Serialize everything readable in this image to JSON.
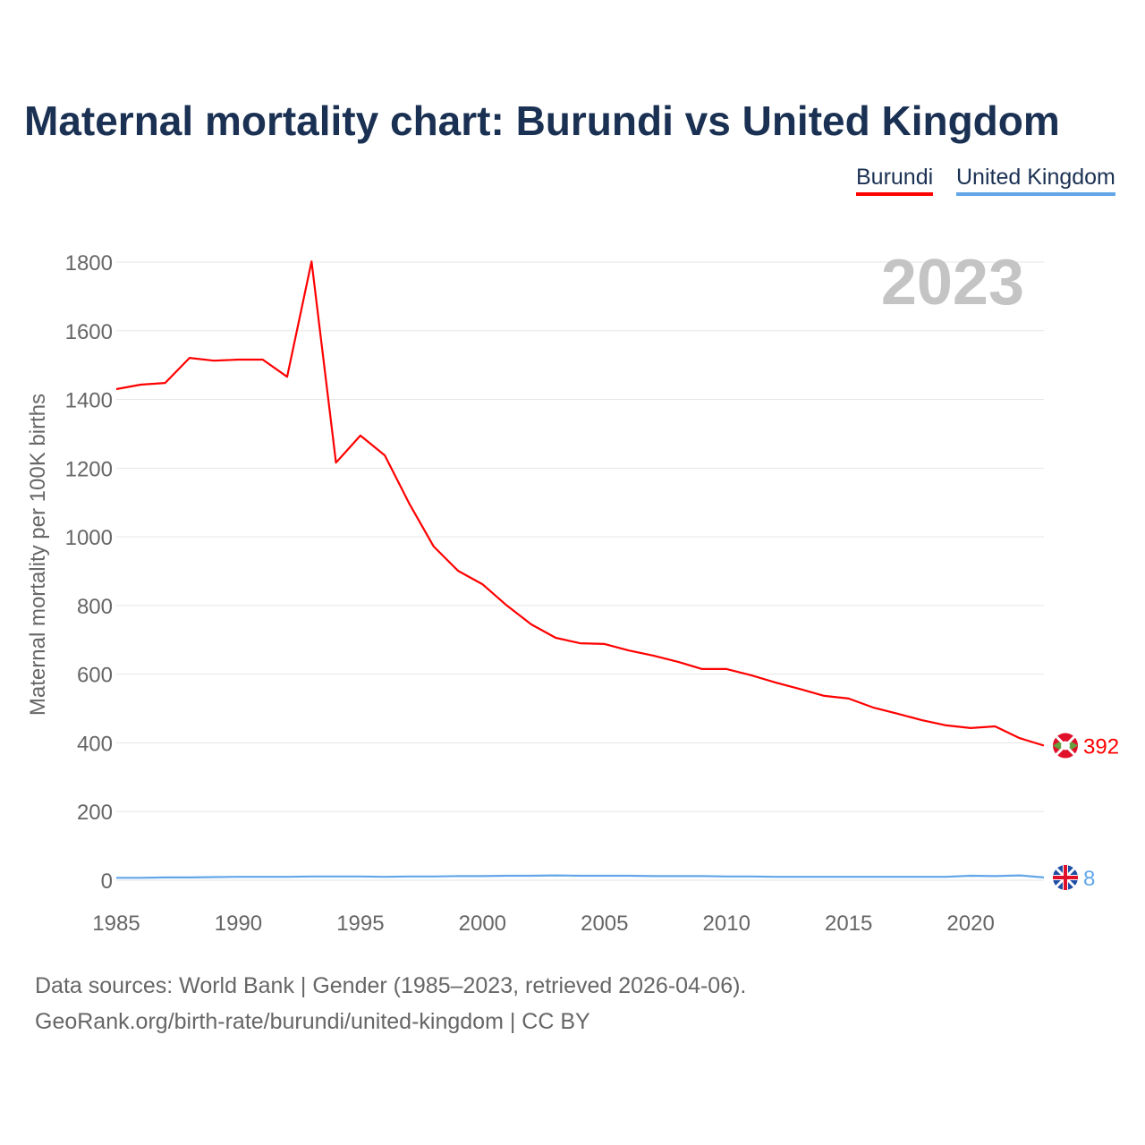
{
  "title": "Maternal mortality chart: Burundi vs United Kingdom",
  "footer": {
    "line1": "Data sources: World Bank | Gender (1985–2023, retrieved 2026-04-06).",
    "line2": "GeoRank.org/birth-rate/burundi/united-kingdom | CC BY"
  },
  "chart_data": {
    "type": "line",
    "title": "Maternal mortality chart: Burundi vs United Kingdom",
    "ylabel": "Maternal mortality per 100K births",
    "xlabel": "",
    "year_watermark": "2023",
    "xlim": [
      1985,
      2023
    ],
    "ylim": [
      0,
      1800
    ],
    "xticks": [
      1985,
      1990,
      1995,
      2000,
      2005,
      2010,
      2015,
      2020
    ],
    "yticks": [
      0,
      200,
      400,
      600,
      800,
      1000,
      1200,
      1400,
      1600,
      1800
    ],
    "grid": true,
    "legend_position": "top-right",
    "x": [
      1985,
      1986,
      1987,
      1988,
      1989,
      1990,
      1991,
      1992,
      1993,
      1994,
      1995,
      1996,
      1997,
      1998,
      1999,
      2000,
      2001,
      2002,
      2003,
      2004,
      2005,
      2006,
      2007,
      2008,
      2009,
      2010,
      2011,
      2012,
      2013,
      2014,
      2015,
      2016,
      2017,
      2018,
      2019,
      2020,
      2021,
      2022,
      2023
    ],
    "series": [
      {
        "name": "Burundi",
        "color": "#ff0000",
        "end_label": "392",
        "values": [
          1430,
          1443,
          1448,
          1521,
          1513,
          1516,
          1516,
          1466,
          1802,
          1216,
          1295,
          1237,
          1097,
          972,
          901,
          862,
          800,
          745,
          706,
          690,
          688,
          669,
          654,
          636,
          615,
          615,
          597,
          576,
          557,
          537,
          529,
          503,
          485,
          466,
          451,
          443,
          448,
          414,
          392
        ]
      },
      {
        "name": "United Kingdom",
        "color": "#62a6e9",
        "end_label": "8",
        "values": [
          7,
          7,
          8,
          8,
          9,
          10,
          10,
          10,
          11,
          11,
          11,
          10,
          11,
          11,
          12,
          12,
          13,
          13,
          14,
          13,
          13,
          13,
          12,
          12,
          12,
          11,
          11,
          10,
          10,
          10,
          10,
          10,
          10,
          10,
          10,
          13,
          12,
          14,
          8
        ]
      }
    ]
  }
}
